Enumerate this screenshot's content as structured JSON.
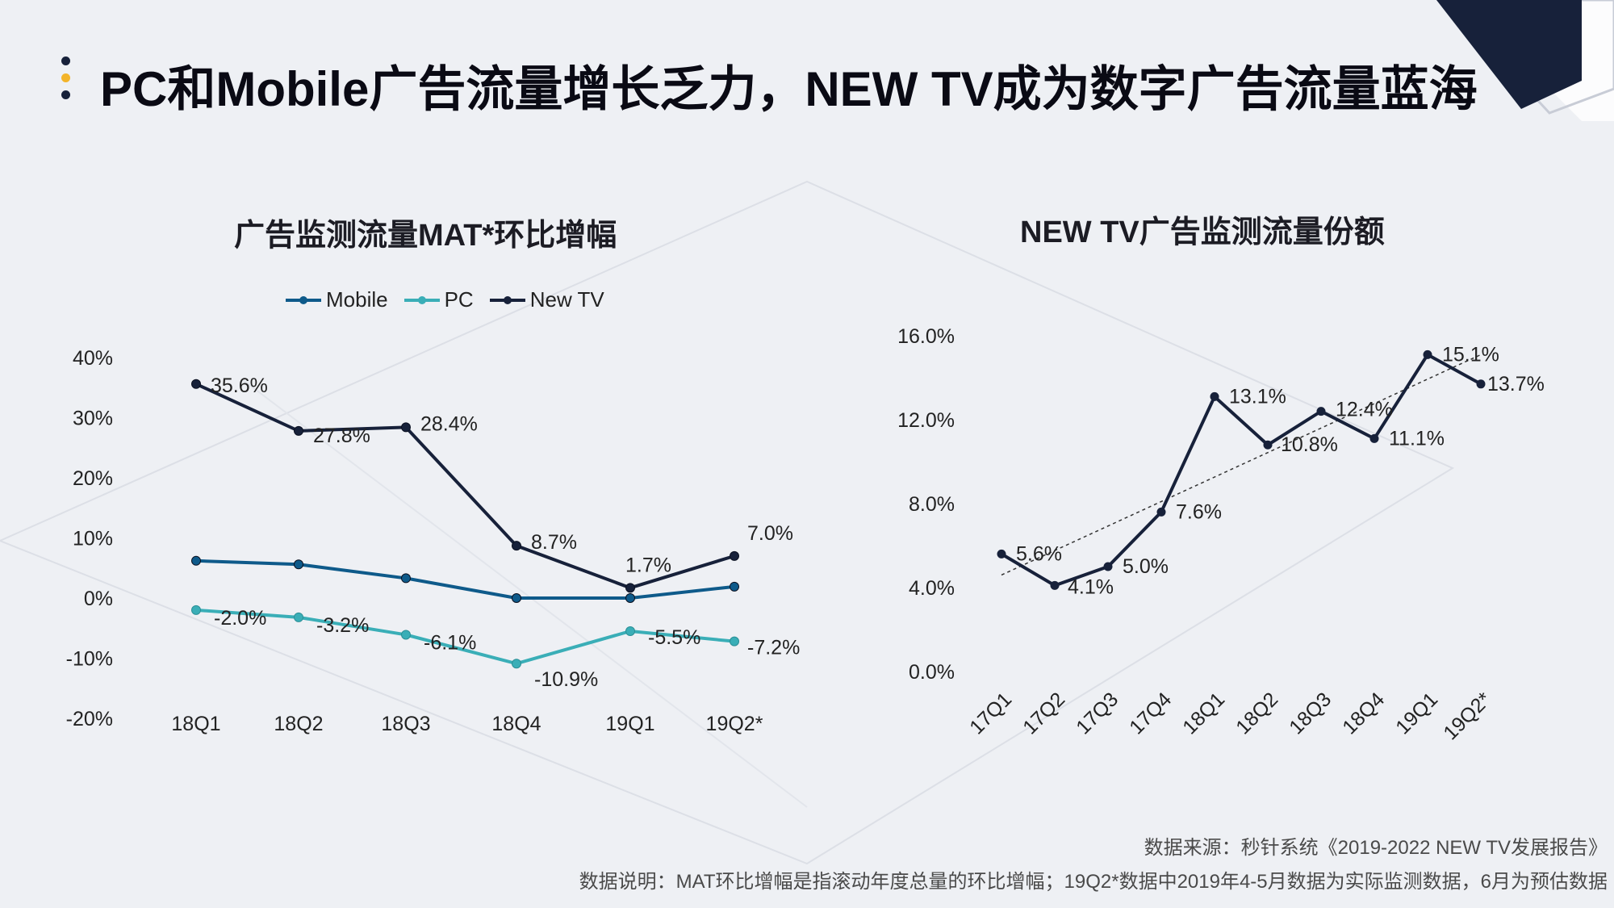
{
  "page": {
    "title": "PC和Mobile广告流量增长乏力，NEW TV成为数字广告流量蓝海",
    "source": "数据来源：秒针系统《2019-2022 NEW TV发展报告》",
    "note": "数据说明：MAT环比增幅是指滚动年度总量的环比增幅；19Q2*数据中2019年4-5月数据为实际监测数据，6月为预估数据"
  },
  "colors": {
    "background": "#eef0f4",
    "navy": "#17213a",
    "mobile": "#0e5a8a",
    "pc": "#3aaeb7",
    "newtv": "#17213a",
    "bullet_gold": "#f3b42a"
  },
  "chart_data": [
    {
      "type": "line",
      "title": "广告监测流量MAT*环比增幅",
      "categories": [
        "18Q1",
        "18Q2",
        "18Q3",
        "18Q4",
        "19Q1",
        "19Q2*"
      ],
      "ylim": [
        -20,
        40
      ],
      "yticks": [
        "40%",
        "30%",
        "20%",
        "10%",
        "0%",
        "-10%",
        "-20%"
      ],
      "ytick_values": [
        40,
        30,
        20,
        10,
        0,
        -10,
        -20
      ],
      "legend_position": "top",
      "series": [
        {
          "name": "Mobile",
          "values": [
            6.2,
            5.6,
            3.3,
            0.0,
            0.0,
            1.9
          ],
          "labels": []
        },
        {
          "name": "PC",
          "values": [
            -2.0,
            -3.2,
            -6.1,
            -10.9,
            -5.5,
            -7.2
          ],
          "labels": [
            "-2.0%",
            "-3.2%",
            "-6.1%",
            "-10.9%",
            "-5.5%",
            "-7.2%"
          ]
        },
        {
          "name": "New TV",
          "values": [
            35.6,
            27.8,
            28.4,
            8.7,
            1.7,
            7.0
          ],
          "labels": [
            "35.6%",
            "27.8%",
            "28.4%",
            "8.7%",
            "1.7%",
            "7.0%"
          ]
        }
      ]
    },
    {
      "type": "line",
      "title": "NEW TV广告监测流量份额",
      "categories": [
        "17Q1",
        "17Q2",
        "17Q3",
        "17Q4",
        "18Q1",
        "18Q2",
        "18Q3",
        "18Q4",
        "19Q1",
        "19Q2*"
      ],
      "ylim": [
        0,
        16
      ],
      "yticks": [
        "16.0%",
        "12.0%",
        "8.0%",
        "4.0%",
        "0.0%"
      ],
      "ytick_values": [
        16,
        12,
        8,
        4,
        0
      ],
      "trendline": true,
      "series": [
        {
          "name": "",
          "values": [
            5.6,
            4.1,
            5.0,
            7.6,
            13.1,
            10.8,
            12.4,
            11.1,
            15.1,
            13.7
          ],
          "labels": [
            "5.6%",
            "4.1%",
            "5.0%",
            "7.6%",
            "13.1%",
            "10.8%",
            "12.4%",
            "11.1%",
            "15.1%",
            "13.7%"
          ]
        }
      ]
    }
  ]
}
